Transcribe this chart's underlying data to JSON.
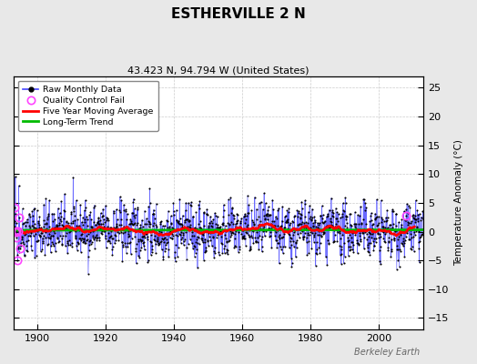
{
  "title": "ESTHERVILLE 2 N",
  "subtitle": "43.423 N, 94.794 W (United States)",
  "ylabel": "Temperature Anomaly (°C)",
  "watermark": "Berkeley Earth",
  "xlim": [
    1893,
    2013
  ],
  "ylim": [
    -17,
    27
  ],
  "yticks": [
    -15,
    -10,
    -5,
    0,
    5,
    10,
    15,
    20,
    25
  ],
  "xticks": [
    1900,
    1920,
    1940,
    1960,
    1980,
    2000
  ],
  "start_year": 1893,
  "end_year": 2013,
  "background_color": "#e8e8e8",
  "plot_background": "#ffffff",
  "raw_line_color": "#4444ff",
  "raw_dot_color": "#000000",
  "moving_avg_color": "#ff0000",
  "trend_color": "#00bb00",
  "qc_fail_color": "#ff44ff",
  "seed": 42
}
